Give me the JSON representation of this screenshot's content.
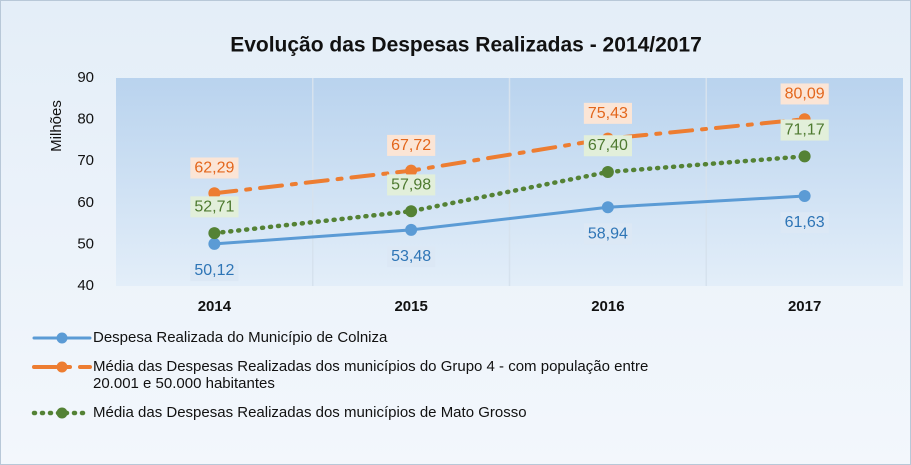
{
  "chart_data": {
    "type": "line",
    "title": "Evolução das Despesas Realizadas - 2014/2017",
    "y_label": "Milhões",
    "categories": [
      "2014",
      "2015",
      "2016",
      "2017"
    ],
    "ylim": [
      40,
      90
    ],
    "yticks": [
      40,
      50,
      60,
      70,
      80,
      90
    ],
    "grid": false,
    "legend": "bottom",
    "series": [
      {
        "name": "Despesa Realizada do Município de Colniza",
        "color": "#5b9bd5",
        "style": "solid",
        "values": [
          50.12,
          53.48,
          58.94,
          61.63
        ],
        "value_labels": [
          "50,12",
          "53,48",
          "58,94",
          "61,63"
        ]
      },
      {
        "name": "Média das Despesas Realizadas dos municípios do Grupo 4 - com população entre 20.001 e 50.000 habitantes",
        "color": "#ed7d31",
        "style": "dashdot",
        "values": [
          62.29,
          67.72,
          75.43,
          80.09
        ],
        "value_labels": [
          "62,29",
          "67,72",
          "75,43",
          "80,09"
        ]
      },
      {
        "name": "Média das Despesas Realizadas dos municípios de Mato Grosso",
        "color": "#548235",
        "style": "dotted",
        "values": [
          52.71,
          57.98,
          67.4,
          71.17
        ],
        "value_labels": [
          "52,71",
          "57,98",
          "67,40",
          "71,17"
        ]
      }
    ]
  }
}
